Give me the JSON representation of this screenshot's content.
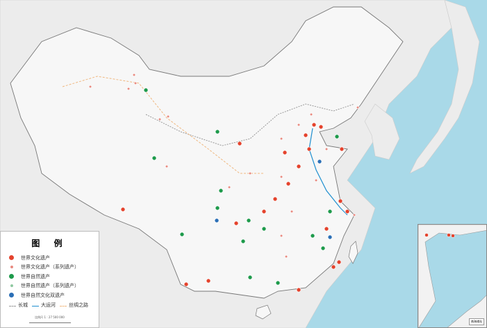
{
  "legend": {
    "title": "图 例",
    "items": [
      {
        "label": "世界文化遗产",
        "color": "#e4432d",
        "series": false
      },
      {
        "label": "世界文化遗产（系列遗产）",
        "color": "#e88a80",
        "series": true
      },
      {
        "label": "世界自然遗产",
        "color": "#1e9a4b",
        "series": false
      },
      {
        "label": "世界自然遗产（系列遗产）",
        "color": "#8fc9a0",
        "series": true
      },
      {
        "label": "世界自然文化双遗产",
        "color": "#2b6fb6",
        "series": false
      }
    ],
    "lines": [
      {
        "label": "长城",
        "color": "#999999"
      },
      {
        "label": "大运河",
        "color": "#1f8fd0"
      },
      {
        "label": "丝绸之路",
        "color": "#f0b880"
      }
    ],
    "scale": "比例尺  1 : 27 500 000"
  },
  "inset": {
    "label": "南海诸岛"
  },
  "colors": {
    "sea": "#a9d9e8",
    "land": "#ececec",
    "china": "#f7f7f7"
  }
}
